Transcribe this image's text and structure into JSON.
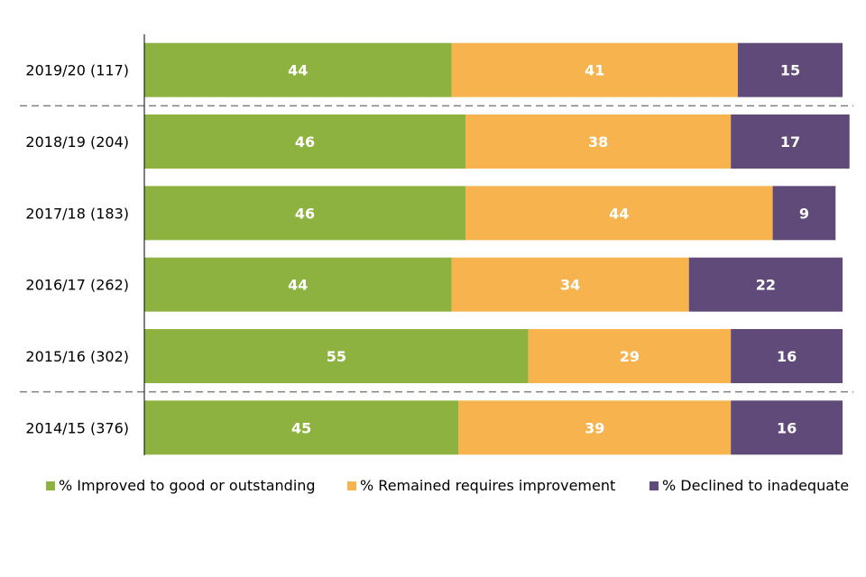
{
  "chart_data": {
    "type": "bar",
    "orientation": "horizontal",
    "stacked": true,
    "categories": [
      "2019/20 (117)",
      "2018/19 (204)",
      "2017/18 (183)",
      "2016/17 (262)",
      "2015/16 (302)",
      "2014/15 (376)"
    ],
    "series": [
      {
        "name": "% Improved to good or outstanding",
        "color": "#8db23f",
        "values": [
          44,
          46,
          46,
          44,
          55,
          45
        ]
      },
      {
        "name": "% Remained requires improvement",
        "color": "#f7b34e",
        "values": [
          41,
          38,
          44,
          34,
          29,
          39
        ]
      },
      {
        "name": "% Declined to inadequate",
        "color": "#5f4a79",
        "values": [
          15,
          17,
          9,
          22,
          16,
          16
        ]
      }
    ],
    "xlim": [
      0,
      100
    ],
    "grid": false,
    "dashed_separators_after_categories": [
      "2019/20 (117)",
      "2015/16 (302)"
    ],
    "legend_position": "bottom"
  }
}
